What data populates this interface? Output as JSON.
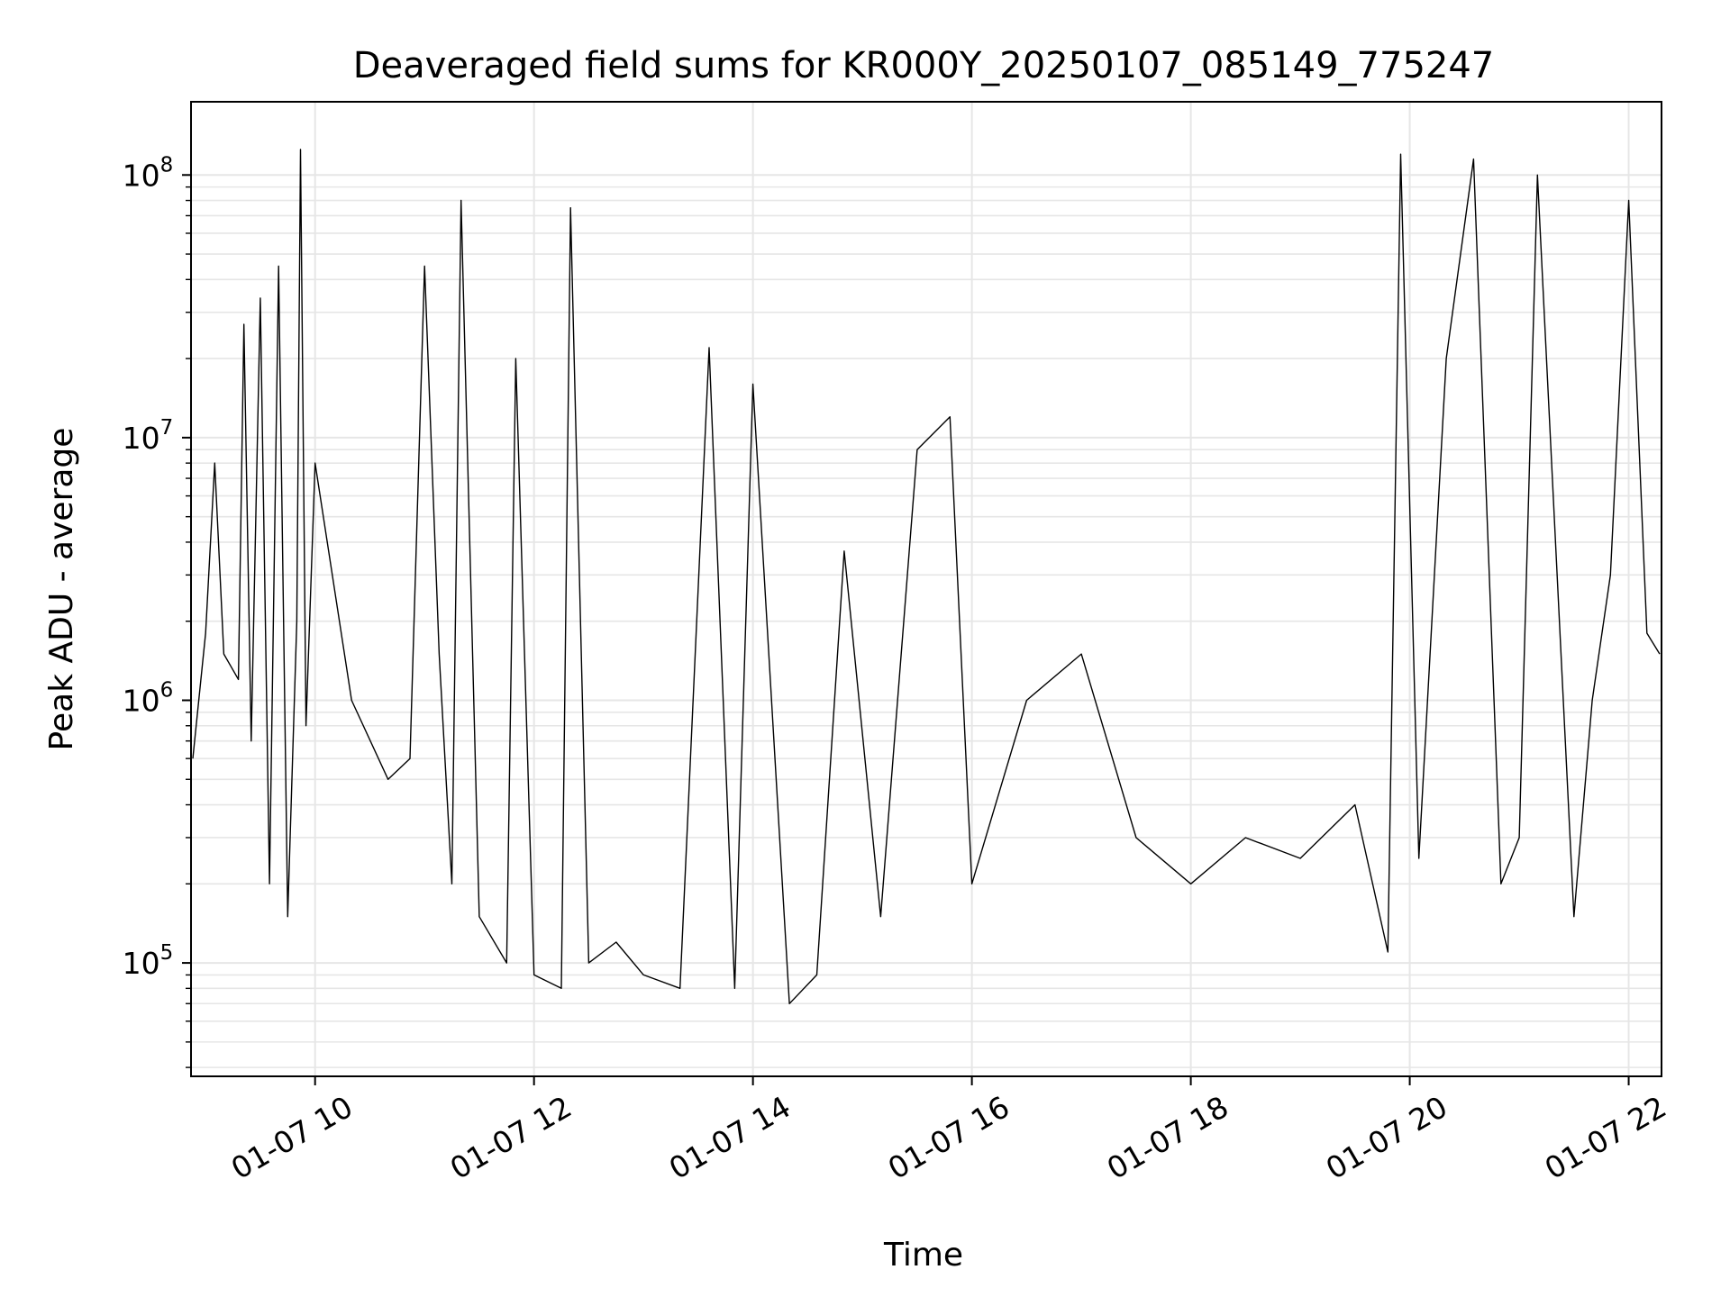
{
  "chart_data": {
    "type": "line",
    "title": "Deaveraged field sums for KR000Y_20250107_085149_775247",
    "xlabel": "Time",
    "ylabel": "Peak ADU - average",
    "y_scale": "log",
    "x_range": [
      "2025-01-07 08:52",
      "2025-01-07 22:18"
    ],
    "ylim": [
      37000,
      190000000
    ],
    "x_tick_labels": [
      "01-07 10",
      "01-07 12",
      "01-07 14",
      "01-07 16",
      "01-07 18",
      "01-07 20",
      "01-07 22"
    ],
    "y_tick_labels": [
      {
        "base": "10",
        "exp": "5",
        "value": 100000
      },
      {
        "base": "10",
        "exp": "6",
        "value": 1000000
      },
      {
        "base": "10",
        "exp": "7",
        "value": 10000000
      },
      {
        "base": "10",
        "exp": "8",
        "value": 100000000
      }
    ],
    "grid": true,
    "line_color": "#000000",
    "series": [
      {
        "x": [
          "2025-01-07 08:53",
          "2025-01-07 09:00",
          "2025-01-07 09:05",
          "2025-01-07 09:10",
          "2025-01-07 09:18",
          "2025-01-07 09:21",
          "2025-01-07 09:25",
          "2025-01-07 09:30",
          "2025-01-07 09:35",
          "2025-01-07 09:40",
          "2025-01-07 09:45",
          "2025-01-07 09:50",
          "2025-01-07 09:52",
          "2025-01-07 09:55",
          "2025-01-07 10:00",
          "2025-01-07 10:20",
          "2025-01-07 10:40",
          "2025-01-07 10:52",
          "2025-01-07 11:00",
          "2025-01-07 11:08",
          "2025-01-07 11:15",
          "2025-01-07 11:20",
          "2025-01-07 11:30",
          "2025-01-07 11:45",
          "2025-01-07 11:50",
          "2025-01-07 12:00",
          "2025-01-07 12:15",
          "2025-01-07 12:20",
          "2025-01-07 12:30",
          "2025-01-07 12:45",
          "2025-01-07 13:00",
          "2025-01-07 13:20",
          "2025-01-07 13:36",
          "2025-01-07 13:50",
          "2025-01-07 14:00",
          "2025-01-07 14:20",
          "2025-01-07 14:35",
          "2025-01-07 14:50",
          "2025-01-07 15:10",
          "2025-01-07 15:30",
          "2025-01-07 15:48",
          "2025-01-07 16:00",
          "2025-01-07 16:30",
          "2025-01-07 17:00",
          "2025-01-07 17:30",
          "2025-01-07 18:00",
          "2025-01-07 18:30",
          "2025-01-07 19:00",
          "2025-01-07 19:30",
          "2025-01-07 19:48",
          "2025-01-07 19:55",
          "2025-01-07 20:05",
          "2025-01-07 20:20",
          "2025-01-07 20:35",
          "2025-01-07 20:50",
          "2025-01-07 21:00",
          "2025-01-07 21:10",
          "2025-01-07 21:30",
          "2025-01-07 21:40",
          "2025-01-07 21:50",
          "2025-01-07 22:00",
          "2025-01-07 22:10",
          "2025-01-07 22:17"
        ],
        "y": [
          600000,
          1800000,
          8000000,
          1500000,
          1200000,
          27000000,
          700000,
          34000000,
          200000,
          45000000,
          150000,
          2000000,
          125000000,
          800000,
          8000000,
          1000000,
          500000,
          600000,
          45000000,
          1500000,
          200000,
          80000000,
          150000,
          100000,
          20000000,
          90000,
          80000,
          75000000,
          100000,
          120000,
          90000,
          80000,
          22000000,
          80000,
          16000000,
          70000,
          90000,
          3700000,
          150000,
          9000000,
          12000000,
          200000,
          1000000,
          1500000,
          300000,
          200000,
          300000,
          250000,
          400000,
          110000,
          120000000,
          250000,
          20000000,
          115000000,
          200000,
          300000,
          100000000,
          150000,
          1000000,
          3000000,
          80000000,
          1800000,
          1500000
        ]
      }
    ]
  }
}
